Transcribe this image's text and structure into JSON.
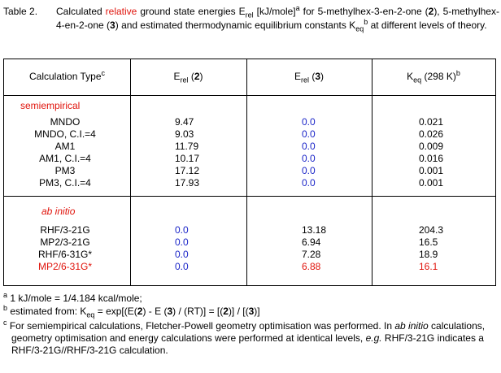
{
  "caption": {
    "label": "Table 2.",
    "part1": "Calculated ",
    "relative": "relative",
    "part2": " ground state energies E",
    "sub_rel": "rel",
    "part3": " [kJ/mole]",
    "sup_a": "a",
    "part4": " for 5-methylhex-3-en-2-one (",
    "c2": "2",
    "part5": "), 5-methylhex-4-en-2-one (",
    "c3": "3",
    "part6": ") and estimated thermodynamic equilibrium constants K",
    "sub_eq": "eq",
    "sup_b": "b",
    "part7": " at different levels of theory."
  },
  "headers": {
    "calc_type": "Calculation Type",
    "calc_type_sup": "c",
    "erel2_E": "E",
    "erel2_sub": "rel",
    "erel2_num": "2",
    "erel3_E": "E",
    "erel3_sub": "rel",
    "erel3_num": "3",
    "keq_K": "K",
    "keq_sub": "eq",
    "keq_rest": " (298 K)",
    "keq_sup": "b"
  },
  "semi": {
    "title": "semiempirical",
    "rows": [
      {
        "method": "MNDO",
        "e2": "9.47",
        "e3": "0.0",
        "keq": "0.021"
      },
      {
        "method": "MNDO, C.I.=4",
        "e2": "9.03",
        "e3": "0.0",
        "keq": "0.026"
      },
      {
        "method": "AM1",
        "e2": "11.79",
        "e3": "0.0",
        "keq": "0.009"
      },
      {
        "method": "AM1, C.I.=4",
        "e2": "10.17",
        "e3": "0.0",
        "keq": "0.016"
      },
      {
        "method": "PM3",
        "e2": "17.12",
        "e3": "0.0",
        "keq": "0.001"
      },
      {
        "method": "PM3, C.I.=4",
        "e2": "17.93",
        "e3": "0.0",
        "keq": "0.001"
      }
    ]
  },
  "abinitio": {
    "title": "ab initio",
    "rows": [
      {
        "method": "RHF/3-21G",
        "e2": "0.0",
        "e3": "13.18",
        "keq": "204.3"
      },
      {
        "method": "MP2/3-21G",
        "e2": "0.0",
        "e3": "6.94",
        "keq": "16.5"
      },
      {
        "method": "RHF/6-31G*",
        "e2": "0.0",
        "e3": "7.28",
        "keq": "18.9"
      },
      {
        "method": "MP2/6-31G*",
        "e2": "0.0",
        "e3": "6.88",
        "keq": "16.1"
      }
    ]
  },
  "notes": {
    "a_mark": "a",
    "a_text": " 1 kJ/mole = 1/4.184 kcal/mole;",
    "b_mark": "b",
    "b_t1": " estimated from: K",
    "b_sub": "eq",
    "b_t2": " = exp[(E(",
    "b_2": "2",
    "b_t3": ") - E (",
    "b_3": "3",
    "b_t4": ") / (RT)] = [(",
    "b_2b": "2",
    "b_t5": ")] / [(",
    "b_3b": "3",
    "b_t6": ")]",
    "c_mark": "c",
    "c_t1": " For semiempirical calculations, Fletcher-Powell geometry optimisation was performed. In ",
    "c_ab": "ab initio",
    "c_t2": " calculations, geometry optimisation and energy calculations were performed at identical levels, ",
    "c_eg": "e.g.",
    "c_t3": " RHF/3-21G indicates a RHF/3-21G//RHF/3-21G calculation."
  },
  "colors": {
    "accent_red": "#e0140c",
    "accent_blue": "#1a24c8"
  }
}
